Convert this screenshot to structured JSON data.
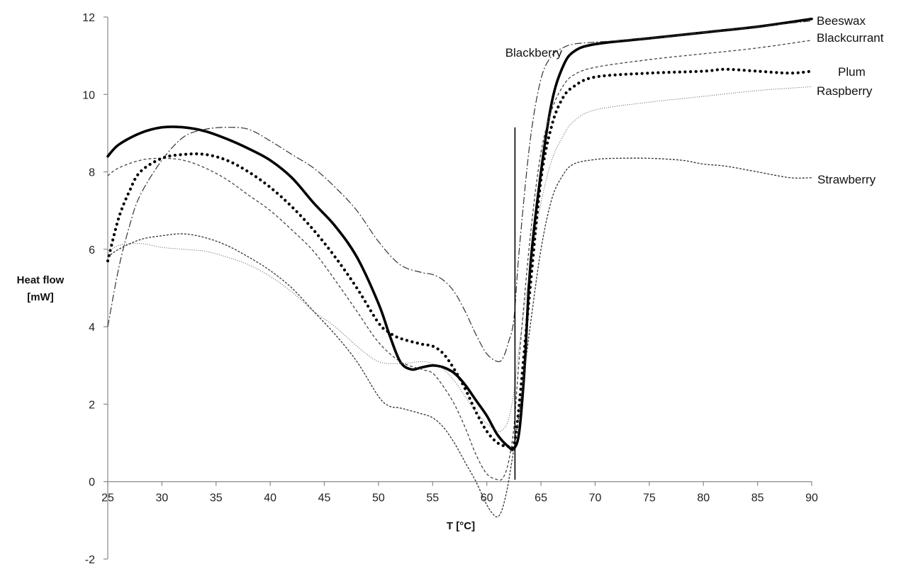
{
  "chart_data": {
    "type": "line",
    "xlabel": "T [°C]",
    "ylabel_line1": "Heat flow",
    "ylabel_line2": "[mW]",
    "xlim": [
      25,
      90
    ],
    "ylim": [
      -2,
      12
    ],
    "xticks": [
      25,
      30,
      35,
      40,
      45,
      50,
      55,
      60,
      65,
      70,
      75,
      80,
      85,
      90
    ],
    "yticks": [
      -2,
      0,
      2,
      4,
      6,
      8,
      10,
      12
    ],
    "grid": false,
    "vertical_marker_x": 62.6,
    "vertical_marker_y": [
      0.05,
      9.15
    ],
    "series": [
      {
        "name": "Beeswax",
        "color": "#000000",
        "style": "solid-thick",
        "points": [
          [
            25,
            8.4
          ],
          [
            26,
            8.7
          ],
          [
            28,
            9.0
          ],
          [
            30,
            9.15
          ],
          [
            32,
            9.15
          ],
          [
            34,
            9.05
          ],
          [
            36,
            8.85
          ],
          [
            38,
            8.6
          ],
          [
            40,
            8.3
          ],
          [
            42,
            7.85
          ],
          [
            44,
            7.2
          ],
          [
            46,
            6.6
          ],
          [
            48,
            5.8
          ],
          [
            50,
            4.6
          ],
          [
            51,
            3.8
          ],
          [
            52,
            3.1
          ],
          [
            53,
            2.9
          ],
          [
            54,
            2.95
          ],
          [
            55,
            3.0
          ],
          [
            56,
            2.95
          ],
          [
            57,
            2.8
          ],
          [
            58,
            2.5
          ],
          [
            59,
            2.1
          ],
          [
            60,
            1.7
          ],
          [
            61,
            1.2
          ],
          [
            62,
            0.9
          ],
          [
            62.5,
            0.85
          ],
          [
            63,
            1.3
          ],
          [
            63.5,
            3.0
          ],
          [
            64,
            5.5
          ],
          [
            65,
            8.0
          ],
          [
            66,
            9.8
          ],
          [
            67,
            10.7
          ],
          [
            68,
            11.1
          ],
          [
            70,
            11.3
          ],
          [
            75,
            11.45
          ],
          [
            80,
            11.6
          ],
          [
            85,
            11.75
          ],
          [
            90,
            11.95
          ]
        ]
      },
      {
        "name": "Blackberry",
        "color": "#333333",
        "style": "dash-dot",
        "points": [
          [
            25,
            4.0
          ],
          [
            26,
            5.5
          ],
          [
            27,
            6.6
          ],
          [
            28,
            7.4
          ],
          [
            30,
            8.3
          ],
          [
            32,
            8.9
          ],
          [
            34,
            9.1
          ],
          [
            36,
            9.15
          ],
          [
            38,
            9.1
          ],
          [
            40,
            8.8
          ],
          [
            42,
            8.45
          ],
          [
            44,
            8.1
          ],
          [
            46,
            7.6
          ],
          [
            48,
            7.0
          ],
          [
            50,
            6.2
          ],
          [
            52,
            5.6
          ],
          [
            54,
            5.4
          ],
          [
            55,
            5.35
          ],
          [
            56,
            5.2
          ],
          [
            57,
            4.9
          ],
          [
            58,
            4.4
          ],
          [
            59,
            3.8
          ],
          [
            60,
            3.3
          ],
          [
            61,
            3.1
          ],
          [
            61.5,
            3.2
          ],
          [
            62,
            3.6
          ],
          [
            62.5,
            4.2
          ],
          [
            63,
            6.0
          ],
          [
            64,
            8.8
          ],
          [
            65,
            10.4
          ],
          [
            66,
            11.0
          ],
          [
            67,
            11.2
          ],
          [
            68,
            11.3
          ],
          [
            70,
            11.35
          ],
          [
            75,
            11.45
          ],
          [
            80,
            11.6
          ],
          [
            85,
            11.75
          ],
          [
            90,
            11.9
          ]
        ]
      },
      {
        "name": "Blackcurrant",
        "color": "#444444",
        "style": "dashed",
        "points": [
          [
            25,
            7.9
          ],
          [
            26,
            8.1
          ],
          [
            28,
            8.3
          ],
          [
            30,
            8.35
          ],
          [
            32,
            8.3
          ],
          [
            34,
            8.1
          ],
          [
            36,
            7.8
          ],
          [
            38,
            7.4
          ],
          [
            40,
            7.0
          ],
          [
            42,
            6.5
          ],
          [
            44,
            5.95
          ],
          [
            46,
            5.2
          ],
          [
            48,
            4.4
          ],
          [
            50,
            3.6
          ],
          [
            52,
            3.1
          ],
          [
            54,
            2.9
          ],
          [
            55,
            2.8
          ],
          [
            56,
            2.45
          ],
          [
            57,
            2.0
          ],
          [
            58,
            1.4
          ],
          [
            59,
            0.7
          ],
          [
            60,
            0.2
          ],
          [
            61,
            0.05
          ],
          [
            61.5,
            0.1
          ],
          [
            62,
            0.5
          ],
          [
            62.5,
            1.4
          ],
          [
            63,
            3.2
          ],
          [
            64,
            6.3
          ],
          [
            65,
            8.5
          ],
          [
            66,
            9.6
          ],
          [
            67,
            10.2
          ],
          [
            68,
            10.5
          ],
          [
            70,
            10.7
          ],
          [
            75,
            10.9
          ],
          [
            80,
            11.05
          ],
          [
            85,
            11.2
          ],
          [
            90,
            11.4
          ]
        ]
      },
      {
        "name": "Plum",
        "color": "#000000",
        "style": "dotted-thick",
        "points": [
          [
            25,
            5.7
          ],
          [
            26,
            6.8
          ],
          [
            27,
            7.5
          ],
          [
            28,
            8.0
          ],
          [
            30,
            8.35
          ],
          [
            32,
            8.45
          ],
          [
            34,
            8.45
          ],
          [
            36,
            8.3
          ],
          [
            38,
            8.0
          ],
          [
            40,
            7.6
          ],
          [
            42,
            7.1
          ],
          [
            44,
            6.5
          ],
          [
            46,
            5.8
          ],
          [
            48,
            5.0
          ],
          [
            50,
            4.1
          ],
          [
            51,
            3.85
          ],
          [
            52,
            3.7
          ],
          [
            54,
            3.55
          ],
          [
            55,
            3.5
          ],
          [
            56,
            3.3
          ],
          [
            57,
            2.9
          ],
          [
            58,
            2.4
          ],
          [
            59,
            1.8
          ],
          [
            60,
            1.3
          ],
          [
            61,
            1.0
          ],
          [
            62,
            0.9
          ],
          [
            62.5,
            0.95
          ],
          [
            63,
            2.0
          ],
          [
            64,
            5.0
          ],
          [
            65,
            7.8
          ],
          [
            66,
            9.2
          ],
          [
            67,
            9.9
          ],
          [
            68,
            10.2
          ],
          [
            70,
            10.45
          ],
          [
            75,
            10.55
          ],
          [
            80,
            10.6
          ],
          [
            82,
            10.65
          ],
          [
            85,
            10.6
          ],
          [
            88,
            10.55
          ],
          [
            90,
            10.6
          ]
        ]
      },
      {
        "name": "Raspberry",
        "color": "#555555",
        "style": "fine-dotted",
        "points": [
          [
            25,
            5.9
          ],
          [
            26,
            6.1
          ],
          [
            28,
            6.15
          ],
          [
            30,
            6.05
          ],
          [
            32,
            6.0
          ],
          [
            34,
            5.95
          ],
          [
            36,
            5.8
          ],
          [
            38,
            5.6
          ],
          [
            40,
            5.3
          ],
          [
            42,
            4.9
          ],
          [
            44,
            4.4
          ],
          [
            46,
            4.0
          ],
          [
            48,
            3.5
          ],
          [
            50,
            3.1
          ],
          [
            52,
            3.05
          ],
          [
            54,
            3.1
          ],
          [
            55,
            3.05
          ],
          [
            56,
            2.9
          ],
          [
            57,
            2.6
          ],
          [
            58,
            2.2
          ],
          [
            59,
            1.8
          ],
          [
            60,
            1.5
          ],
          [
            61,
            1.3
          ],
          [
            61.5,
            1.35
          ],
          [
            62,
            1.6
          ],
          [
            62.5,
            2.3
          ],
          [
            63,
            3.5
          ],
          [
            64,
            5.5
          ],
          [
            65,
            7.2
          ],
          [
            66,
            8.3
          ],
          [
            67,
            8.9
          ],
          [
            68,
            9.3
          ],
          [
            70,
            9.6
          ],
          [
            75,
            9.8
          ],
          [
            80,
            9.95
          ],
          [
            85,
            10.1
          ],
          [
            90,
            10.2
          ]
        ]
      },
      {
        "name": "Strawberry",
        "color": "#333333",
        "style": "short-dash",
        "points": [
          [
            25,
            5.8
          ],
          [
            26,
            6.0
          ],
          [
            28,
            6.25
          ],
          [
            30,
            6.35
          ],
          [
            32,
            6.4
          ],
          [
            34,
            6.3
          ],
          [
            36,
            6.1
          ],
          [
            38,
            5.8
          ],
          [
            40,
            5.45
          ],
          [
            42,
            5.0
          ],
          [
            44,
            4.4
          ],
          [
            46,
            3.8
          ],
          [
            48,
            3.1
          ],
          [
            50,
            2.2
          ],
          [
            51,
            1.95
          ],
          [
            52,
            1.9
          ],
          [
            54,
            1.75
          ],
          [
            55,
            1.65
          ],
          [
            56,
            1.4
          ],
          [
            57,
            1.0
          ],
          [
            58,
            0.5
          ],
          [
            59,
            0.0
          ],
          [
            60,
            -0.6
          ],
          [
            60.8,
            -0.9
          ],
          [
            61.3,
            -0.8
          ],
          [
            61.8,
            -0.3
          ],
          [
            62.3,
            0.5
          ],
          [
            63,
            1.8
          ],
          [
            64,
            4.0
          ],
          [
            65,
            6.0
          ],
          [
            66,
            7.3
          ],
          [
            67,
            7.9
          ],
          [
            68,
            8.2
          ],
          [
            70,
            8.32
          ],
          [
            72,
            8.35
          ],
          [
            75,
            8.35
          ],
          [
            78,
            8.3
          ],
          [
            80,
            8.2
          ],
          [
            82,
            8.15
          ],
          [
            85,
            8.0
          ],
          [
            88,
            7.85
          ],
          [
            90,
            7.85
          ]
        ]
      }
    ],
    "labels": [
      {
        "series": "Beeswax",
        "text": "Beeswax"
      },
      {
        "series": "Blackcurrant",
        "text": "Blackcurrant"
      },
      {
        "series": "Plum",
        "text": "Plum"
      },
      {
        "series": "Raspberry",
        "text": "Raspberry"
      },
      {
        "series": "Strawberry",
        "text": "Strawberry"
      },
      {
        "series": "Blackberry",
        "text": "Blackberry"
      }
    ]
  }
}
